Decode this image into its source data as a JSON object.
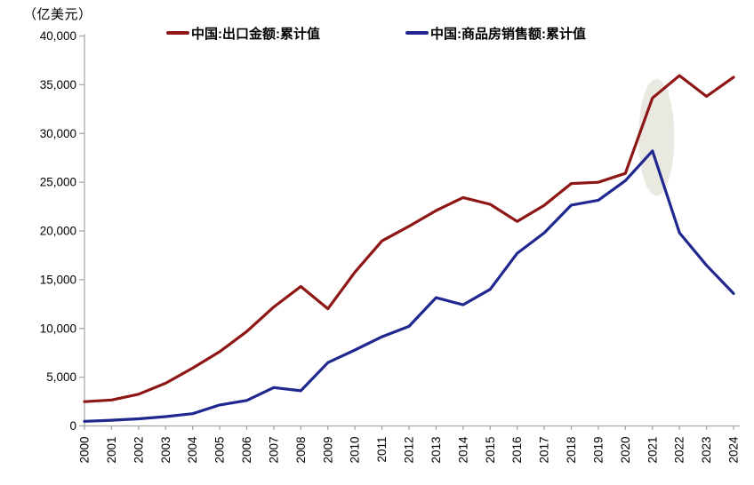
{
  "unit_label": "（亿美元）",
  "colors": {
    "export_line": "#8e1615",
    "housing_line": "#20288f",
    "axis": "#a9a9a9",
    "tick_text": "#000000",
    "highlight": "#e9e8e1"
  },
  "chart_data": {
    "type": "line",
    "title": "",
    "unit_label": "（亿美元）",
    "xlabel": "",
    "ylabel": "（亿美元）",
    "ylim": [
      0,
      40000
    ],
    "ytick_step": 5000,
    "ytick_labels": [
      "0",
      "5,000",
      "10,000",
      "15,000",
      "20,000",
      "25,000",
      "30,000",
      "35,000",
      "40,000"
    ],
    "grid": false,
    "legend_position": "top",
    "x": [
      2000,
      2001,
      2002,
      2003,
      2004,
      2005,
      2006,
      2007,
      2008,
      2009,
      2010,
      2011,
      2012,
      2013,
      2014,
      2015,
      2016,
      2017,
      2018,
      2019,
      2020,
      2021,
      2022,
      2023,
      2024
    ],
    "series": [
      {
        "name": "中国:出口金额:累计值",
        "color": "#8e1615",
        "values": [
          2492,
          2661,
          3256,
          4382,
          5933,
          7620,
          9689,
          12205,
          14307,
          12016,
          15778,
          18984,
          20487,
          22090,
          23423,
          22735,
          20976,
          22633,
          24867,
          24995,
          25900,
          33640,
          35936,
          33800,
          35772
        ]
      },
      {
        "name": "中国:商品房销售额:累计值",
        "color": "#20288f",
        "values": [
          475,
          587,
          729,
          961,
          1253,
          2146,
          2613,
          3932,
          3607,
          6494,
          7788,
          9152,
          10215,
          13155,
          12425,
          14010,
          17715,
          19808,
          22655,
          23149,
          25161,
          28206,
          19809,
          16472,
          13589
        ]
      }
    ],
    "annotation": {
      "shape": "ellipse",
      "center_year": 2021.15,
      "center_value": 29600,
      "rx_years": 0.66,
      "ry_value": 6000,
      "meaning": "highlight around 2021: export surge vs housing-sales peak"
    }
  }
}
